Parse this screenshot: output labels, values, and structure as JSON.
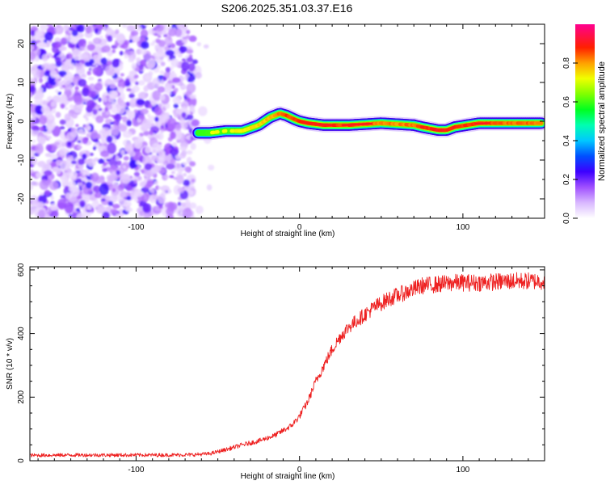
{
  "chart_data": [
    {
      "type": "heatmap",
      "title": "S206.2025.351.03.37.E16",
      "xlabel": "Height of straight line (km)",
      "ylabel": "Frequency (Hz)",
      "xlim": [
        -165,
        150
      ],
      "ylim": [
        -25,
        25
      ],
      "xticks": [
        -100,
        0,
        100
      ],
      "yticks": [
        -20,
        -10,
        0,
        10,
        20
      ],
      "colorbar": {
        "label": "Normalized spectral amplitude",
        "ticks": [
          0.0,
          0.2,
          0.4,
          0.6,
          0.8
        ],
        "range": [
          0,
          1
        ]
      },
      "noise_region": {
        "x_from": -165,
        "x_to": -65
      },
      "ridge": {
        "x": [
          -62,
          -55,
          -45,
          -35,
          -25,
          -18,
          -12,
          -8,
          -3,
          0,
          5,
          15,
          30,
          50,
          70,
          75,
          85,
          90,
          95,
          110,
          130,
          148
        ],
        "frequency": [
          -3,
          -3,
          -2.5,
          -2.5,
          -1,
          1,
          2,
          1.5,
          0.5,
          0,
          -0.5,
          -1,
          -1,
          -0.5,
          -1,
          -1.5,
          -2.3,
          -2.3,
          -1.5,
          -0.5,
          -0.5,
          -0.5
        ],
        "amplitude": [
          0.5,
          0.6,
          0.6,
          0.65,
          0.7,
          0.75,
          0.85,
          0.9,
          0.9,
          0.95,
          0.95,
          0.97,
          0.9,
          0.8,
          0.85,
          0.95,
          1.0,
          1.0,
          0.95,
          0.9,
          0.85,
          0.85
        ]
      }
    },
    {
      "type": "line",
      "xlabel": "Height of straight line (km)",
      "ylabel": "SNR (10 * v/v)",
      "xlim": [
        -165,
        150
      ],
      "ylim": [
        0,
        610
      ],
      "xticks": [
        -100,
        0,
        100
      ],
      "yticks": [
        0,
        200,
        400,
        600
      ],
      "series": [
        {
          "name": "SNR",
          "color": "#ee2222",
          "x": [
            -165,
            -140,
            -110,
            -80,
            -65,
            -55,
            -45,
            -35,
            -25,
            -15,
            -5,
            0,
            5,
            10,
            15,
            20,
            25,
            30,
            35,
            40,
            45,
            55,
            65,
            75,
            85,
            95,
            110,
            130,
            150
          ],
          "y": [
            17,
            18,
            18,
            18,
            19,
            22,
            35,
            50,
            62,
            80,
            110,
            140,
            185,
            250,
            300,
            350,
            390,
            420,
            440,
            460,
            480,
            510,
            530,
            550,
            555,
            560,
            560,
            565,
            565
          ]
        }
      ]
    }
  ]
}
